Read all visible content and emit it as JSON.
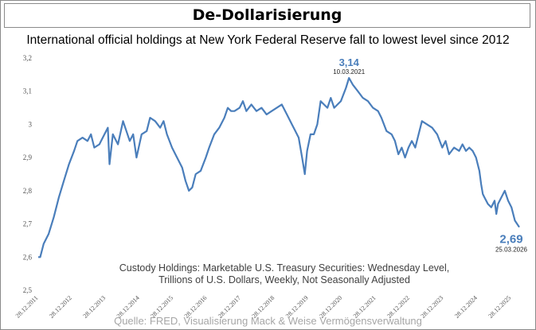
{
  "header": {
    "title": "De-Dollarisierung"
  },
  "footer": {
    "source": "Quelle: FRED, Visualisierung Mack & Weise Vermögensverwaltung"
  },
  "chart_data": {
    "type": "line",
    "title": "International official holdings at New York Federal Reserve fall to lowest level since 2012",
    "xlabel": "",
    "ylabel": "",
    "ylim": [
      2.5,
      3.2
    ],
    "y_ticks": [
      "2,5",
      "2,6",
      "2,7",
      "2,8",
      "2,9",
      "3",
      "3,1",
      "3,2"
    ],
    "y_tick_values": [
      2.5,
      2.6,
      2.7,
      2.8,
      2.9,
      3.0,
      3.1,
      3.2
    ],
    "x_ticks": [
      "28.12.2011",
      "28.12.2012",
      "28.12.2013",
      "28.12.2014",
      "28.12.2015",
      "28.12.2016",
      "28.12.2017",
      "28.12.2018",
      "28.12.2019",
      "28.12.2020",
      "28.12.2021",
      "28.12.2022",
      "28.12.2023",
      "28.12.2024",
      "28.12.2025"
    ],
    "grid": false,
    "line_color": "#4a7ebb",
    "series": [
      {
        "values": [
          [
            2011.99,
            2.6
          ],
          [
            2012.05,
            2.6
          ],
          [
            2012.15,
            2.64
          ],
          [
            2012.3,
            2.67
          ],
          [
            2012.45,
            2.72
          ],
          [
            2012.6,
            2.78
          ],
          [
            2012.75,
            2.83
          ],
          [
            2012.9,
            2.88
          ],
          [
            2013.05,
            2.92
          ],
          [
            2013.15,
            2.95
          ],
          [
            2013.3,
            2.96
          ],
          [
            2013.45,
            2.95
          ],
          [
            2013.55,
            2.97
          ],
          [
            2013.65,
            2.93
          ],
          [
            2013.8,
            2.94
          ],
          [
            2013.9,
            2.96
          ],
          [
            2014.05,
            2.99
          ],
          [
            2014.1,
            2.88
          ],
          [
            2014.2,
            2.97
          ],
          [
            2014.35,
            2.94
          ],
          [
            2014.5,
            3.01
          ],
          [
            2014.6,
            2.98
          ],
          [
            2014.7,
            2.95
          ],
          [
            2014.8,
            2.97
          ],
          [
            2014.9,
            2.9
          ],
          [
            2015.05,
            2.97
          ],
          [
            2015.2,
            2.98
          ],
          [
            2015.3,
            3.02
          ],
          [
            2015.45,
            3.01
          ],
          [
            2015.6,
            2.99
          ],
          [
            2015.7,
            3.01
          ],
          [
            2015.8,
            2.97
          ],
          [
            2015.95,
            2.93
          ],
          [
            2016.1,
            2.9
          ],
          [
            2016.25,
            2.87
          ],
          [
            2016.35,
            2.83
          ],
          [
            2016.45,
            2.8
          ],
          [
            2016.55,
            2.81
          ],
          [
            2016.65,
            2.85
          ],
          [
            2016.8,
            2.86
          ],
          [
            2016.95,
            2.9
          ],
          [
            2017.05,
            2.93
          ],
          [
            2017.2,
            2.97
          ],
          [
            2017.35,
            2.99
          ],
          [
            2017.5,
            3.02
          ],
          [
            2017.6,
            3.05
          ],
          [
            2017.7,
            3.04
          ],
          [
            2017.8,
            3.04
          ],
          [
            2017.95,
            3.05
          ],
          [
            2018.05,
            3.07
          ],
          [
            2018.15,
            3.04
          ],
          [
            2018.3,
            3.06
          ],
          [
            2018.45,
            3.04
          ],
          [
            2018.6,
            3.05
          ],
          [
            2018.75,
            3.03
          ],
          [
            2018.9,
            3.04
          ],
          [
            2019.05,
            3.05
          ],
          [
            2019.2,
            3.06
          ],
          [
            2019.35,
            3.03
          ],
          [
            2019.5,
            3.0
          ],
          [
            2019.6,
            2.98
          ],
          [
            2019.7,
            2.96
          ],
          [
            2019.8,
            2.9
          ],
          [
            2019.88,
            2.85
          ],
          [
            2019.95,
            2.92
          ],
          [
            2020.05,
            2.97
          ],
          [
            2020.15,
            2.97
          ],
          [
            2020.25,
            3.0
          ],
          [
            2020.35,
            3.07
          ],
          [
            2020.45,
            3.06
          ],
          [
            2020.55,
            3.05
          ],
          [
            2020.65,
            3.08
          ],
          [
            2020.75,
            3.05
          ],
          [
            2020.85,
            3.06
          ],
          [
            2020.95,
            3.07
          ],
          [
            2021.1,
            3.11
          ],
          [
            2021.19,
            3.14
          ],
          [
            2021.3,
            3.12
          ],
          [
            2021.45,
            3.1
          ],
          [
            2021.6,
            3.08
          ],
          [
            2021.75,
            3.07
          ],
          [
            2021.9,
            3.05
          ],
          [
            2022.05,
            3.04
          ],
          [
            2022.15,
            3.02
          ],
          [
            2022.3,
            2.98
          ],
          [
            2022.45,
            2.97
          ],
          [
            2022.55,
            2.95
          ],
          [
            2022.65,
            2.91
          ],
          [
            2022.75,
            2.93
          ],
          [
            2022.85,
            2.9
          ],
          [
            2022.95,
            2.93
          ],
          [
            2023.05,
            2.95
          ],
          [
            2023.15,
            2.93
          ],
          [
            2023.25,
            2.97
          ],
          [
            2023.35,
            3.01
          ],
          [
            2023.5,
            3.0
          ],
          [
            2023.65,
            2.99
          ],
          [
            2023.8,
            2.97
          ],
          [
            2023.95,
            2.93
          ],
          [
            2024.05,
            2.95
          ],
          [
            2024.15,
            2.91
          ],
          [
            2024.3,
            2.93
          ],
          [
            2024.45,
            2.92
          ],
          [
            2024.55,
            2.94
          ],
          [
            2024.65,
            2.92
          ],
          [
            2024.75,
            2.93
          ],
          [
            2024.85,
            2.92
          ],
          [
            2024.95,
            2.9
          ],
          [
            2025.0,
            2.88
          ],
          [
            2025.05,
            2.86
          ],
          [
            2025.1,
            2.82
          ],
          [
            2025.15,
            2.79
          ],
          [
            2025.2,
            2.78
          ],
          [
            2025.3,
            2.76
          ],
          [
            2025.4,
            2.75
          ],
          [
            2025.5,
            2.77
          ],
          [
            2025.55,
            2.73
          ],
          [
            2025.6,
            2.76
          ],
          [
            2025.7,
            2.78
          ],
          [
            2025.8,
            2.8
          ],
          [
            2025.9,
            2.77
          ],
          [
            2026.0,
            2.75
          ],
          [
            2026.1,
            2.71
          ],
          [
            2026.23,
            2.69
          ]
        ]
      }
    ],
    "annotations": {
      "peak": {
        "value": "3,14",
        "date": "10.03.2021",
        "x": 2021.19,
        "y": 3.14
      },
      "end": {
        "value": "2,69",
        "date": "25.03.2026",
        "x": 2026.23,
        "y": 2.69
      },
      "note_lines": [
        "Custody Holdings: Marketable U.S. Treasury Securities: Wednesday Level,",
        "Trillions of U.S. Dollars, Weekly, Not Seasonally Adjusted"
      ]
    }
  }
}
